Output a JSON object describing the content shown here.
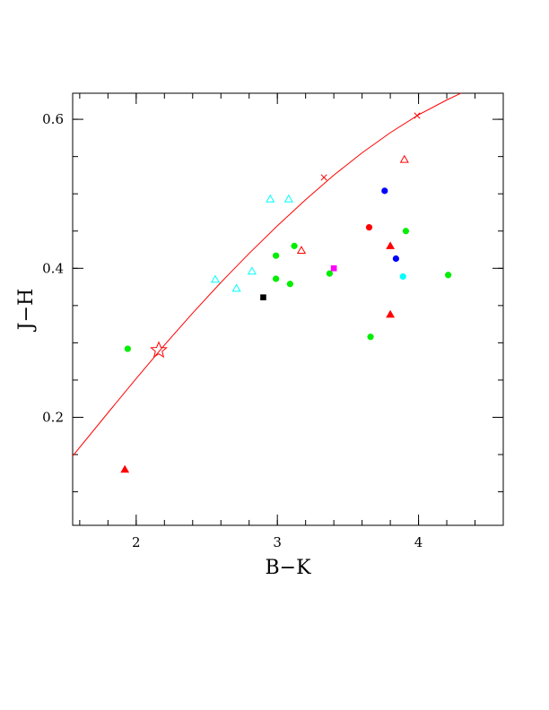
{
  "chart_data": {
    "type": "scatter",
    "title": "",
    "xlabel": "B−K",
    "ylabel": "J−H",
    "xlim": [
      1.55,
      4.6
    ],
    "ylim": [
      0.055,
      0.635
    ],
    "x_ticks": [
      {
        "value": 2,
        "label": "2"
      },
      {
        "value": 3,
        "label": "3"
      },
      {
        "value": 4,
        "label": "4"
      }
    ],
    "y_ticks": [
      {
        "value": 0.2,
        "label": "0.2"
      },
      {
        "value": 0.4,
        "label": "0.4"
      },
      {
        "value": 0.6,
        "label": "0.6"
      }
    ],
    "grid": false,
    "legend": "none",
    "curve": {
      "color": "#ff0000",
      "points": [
        {
          "x": 1.55,
          "y": 0.148
        },
        {
          "x": 1.8,
          "y": 0.206
        },
        {
          "x": 2.0,
          "y": 0.252
        },
        {
          "x": 2.2,
          "y": 0.297
        },
        {
          "x": 2.4,
          "y": 0.34
        },
        {
          "x": 2.6,
          "y": 0.381
        },
        {
          "x": 2.8,
          "y": 0.42
        },
        {
          "x": 3.0,
          "y": 0.457
        },
        {
          "x": 3.2,
          "y": 0.492
        },
        {
          "x": 3.4,
          "y": 0.525
        },
        {
          "x": 3.6,
          "y": 0.555
        },
        {
          "x": 3.8,
          "y": 0.582
        },
        {
          "x": 4.0,
          "y": 0.606
        },
        {
          "x": 4.2,
          "y": 0.626
        },
        {
          "x": 4.3,
          "y": 0.635
        }
      ],
      "cross_markers": [
        {
          "x": 3.33,
          "y": 0.522
        },
        {
          "x": 3.99,
          "y": 0.605
        }
      ],
      "star_marker": {
        "x": 2.16,
        "y": 0.29
      }
    },
    "series": [
      {
        "marker": "circle",
        "color": "#00ee00",
        "points": [
          {
            "x": 1.94,
            "y": 0.292
          },
          {
            "x": 2.99,
            "y": 0.417
          },
          {
            "x": 2.99,
            "y": 0.386
          },
          {
            "x": 3.09,
            "y": 0.379
          },
          {
            "x": 3.12,
            "y": 0.43
          },
          {
            "x": 3.37,
            "y": 0.393
          },
          {
            "x": 3.66,
            "y": 0.308
          },
          {
            "x": 3.91,
            "y": 0.45
          },
          {
            "x": 4.21,
            "y": 0.391
          }
        ]
      },
      {
        "marker": "circle",
        "color": "#ff0000",
        "points": [
          {
            "x": 3.65,
            "y": 0.455
          }
        ]
      },
      {
        "marker": "circle",
        "color": "#0000ff",
        "points": [
          {
            "x": 3.76,
            "y": 0.504
          },
          {
            "x": 3.84,
            "y": 0.413
          }
        ]
      },
      {
        "marker": "circle",
        "color": "#00ffff",
        "points": [
          {
            "x": 3.89,
            "y": 0.389
          }
        ]
      },
      {
        "marker": "triangle-open",
        "color": "#00ffff",
        "points": [
          {
            "x": 2.56,
            "y": 0.385
          },
          {
            "x": 2.71,
            "y": 0.373
          },
          {
            "x": 2.82,
            "y": 0.396
          },
          {
            "x": 2.95,
            "y": 0.493
          },
          {
            "x": 3.08,
            "y": 0.493
          }
        ]
      },
      {
        "marker": "triangle-open",
        "color": "#ff0000",
        "points": [
          {
            "x": 3.17,
            "y": 0.424
          },
          {
            "x": 3.9,
            "y": 0.546
          }
        ]
      },
      {
        "marker": "triangle-filled",
        "color": "#ff0000",
        "points": [
          {
            "x": 1.92,
            "y": 0.13
          },
          {
            "x": 3.8,
            "y": 0.43
          },
          {
            "x": 3.8,
            "y": 0.338
          }
        ]
      },
      {
        "marker": "square",
        "color": "#000000",
        "points": [
          {
            "x": 2.9,
            "y": 0.361
          }
        ]
      },
      {
        "marker": "square",
        "color": "#ff00ff",
        "points": [
          {
            "x": 3.4,
            "y": 0.4
          }
        ]
      }
    ]
  }
}
